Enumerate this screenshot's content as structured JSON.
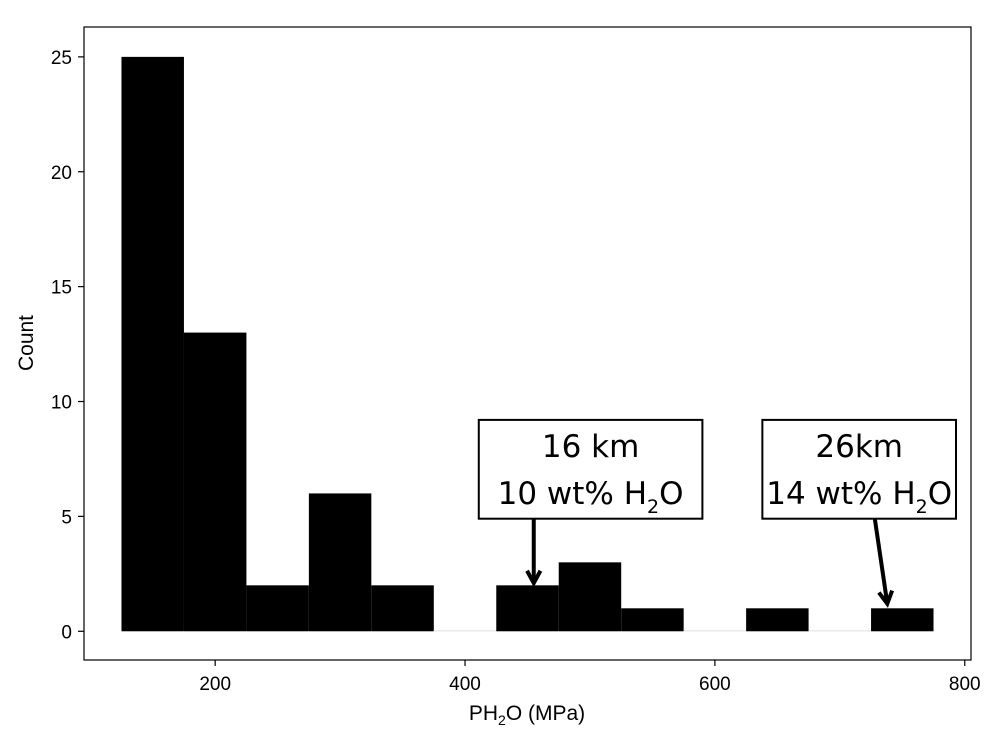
{
  "chart_data": {
    "type": "bar",
    "subtype": "histogram",
    "bin_width": 50,
    "bins": [
      {
        "x0": 125,
        "x1": 175,
        "count": 25
      },
      {
        "x0": 175,
        "x1": 225,
        "count": 13
      },
      {
        "x0": 225,
        "x1": 275,
        "count": 2
      },
      {
        "x0": 275,
        "x1": 325,
        "count": 6
      },
      {
        "x0": 325,
        "x1": 375,
        "count": 2
      },
      {
        "x0": 375,
        "x1": 425,
        "count": 0
      },
      {
        "x0": 425,
        "x1": 475,
        "count": 2
      },
      {
        "x0": 475,
        "x1": 525,
        "count": 3
      },
      {
        "x0": 525,
        "x1": 575,
        "count": 1
      },
      {
        "x0": 575,
        "x1": 625,
        "count": 0
      },
      {
        "x0": 625,
        "x1": 675,
        "count": 1
      },
      {
        "x0": 675,
        "x1": 725,
        "count": 0
      },
      {
        "x0": 725,
        "x1": 775,
        "count": 1
      }
    ],
    "xlim": [
      95,
      805
    ],
    "ylim": [
      -1.25,
      26.3
    ],
    "x_ticks": [
      200,
      400,
      600,
      800
    ],
    "y_ticks": [
      0,
      5,
      10,
      15,
      20,
      25
    ],
    "xlabel": {
      "main": "PH",
      "sub": "2",
      "rest": "O (MPa)"
    },
    "ylabel": "Count",
    "bar_color": "#000000",
    "grid": false,
    "annotations": [
      {
        "line1": "16 km",
        "line2_main": "10 wt% H",
        "line2_sub": "2",
        "line2_rest": "O",
        "box_x": [
          411,
          590
        ],
        "box_y": [
          9.2,
          4.9
        ],
        "arrow_from": [
          455,
          4.9
        ],
        "arrow_to": [
          455,
          2.1
        ]
      },
      {
        "line1": "26km",
        "line2_main": "14 wt% H",
        "line2_sub": "2",
        "line2_rest": "O",
        "box_x": [
          638,
          793
        ],
        "box_y": [
          9.2,
          4.9
        ],
        "arrow_from": [
          728,
          4.9
        ],
        "arrow_to": [
          738,
          1.2
        ]
      }
    ]
  }
}
